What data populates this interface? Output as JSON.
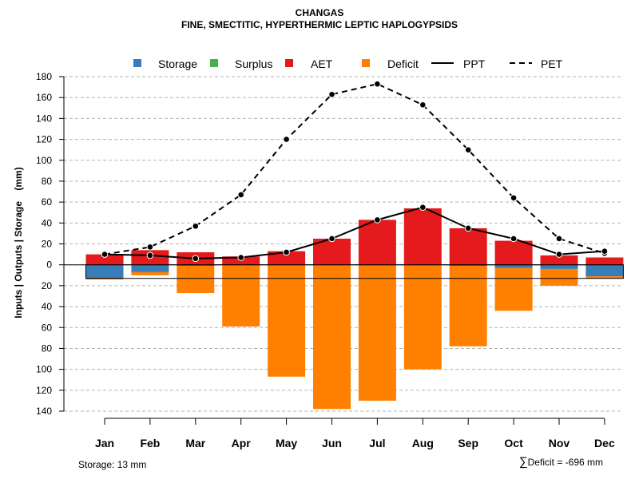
{
  "chart_data": {
    "type": "bar",
    "title": "CHANGAS",
    "subtitle": "FINE, SMECTITIC, HYPERTHERMIC LEPTIC HAPLOGYPSIDS",
    "ylabel": "Inputs | Outputs | Storage    (mm)",
    "ylim": [
      -140,
      180
    ],
    "y_ticks": [
      180,
      160,
      140,
      120,
      100,
      80,
      60,
      40,
      20,
      0,
      -20,
      -40,
      -60,
      -80,
      -100,
      -120,
      -140
    ],
    "y_tick_labels": [
      "180",
      "160",
      "140",
      "120",
      "100",
      "80",
      "60",
      "40",
      "20",
      "0",
      "20",
      "40",
      "60",
      "80",
      "100",
      "120",
      "140"
    ],
    "grid": true,
    "legend_position": "top",
    "categories": [
      "Jan",
      "Feb",
      "Mar",
      "Apr",
      "May",
      "Jun",
      "Jul",
      "Aug",
      "Sep",
      "Oct",
      "Nov",
      "Dec"
    ],
    "series": [
      {
        "name": "Storage",
        "kind": "bar-below",
        "color": "#377EB8",
        "values": [
          13,
          7,
          1,
          0,
          0,
          0,
          0,
          0,
          1,
          3,
          4,
          11
        ]
      },
      {
        "name": "Surplus",
        "kind": "bar-above",
        "color": "#4DAF4A",
        "values": [
          0,
          0,
          0,
          0,
          0,
          0,
          0,
          0,
          0,
          0,
          0,
          0
        ]
      },
      {
        "name": "AET",
        "kind": "bar-above",
        "color": "#E41A1C",
        "values": [
          10,
          14,
          12,
          8,
          13,
          25,
          43,
          54,
          35,
          23,
          9,
          7
        ]
      },
      {
        "name": "Deficit",
        "kind": "bar-below",
        "color": "#FF7F00",
        "values": [
          1,
          3,
          26,
          59,
          107,
          138,
          130,
          100,
          77,
          41,
          16,
          2
        ]
      },
      {
        "name": "PPT",
        "kind": "line",
        "color": "#000000",
        "values": [
          10,
          9,
          6,
          7,
          12,
          25,
          43,
          55,
          35,
          25,
          10,
          13
        ]
      },
      {
        "name": "PET",
        "kind": "dashed-line",
        "color": "#000000",
        "values": [
          10,
          17,
          37,
          67,
          120,
          163,
          173,
          153,
          110,
          64,
          25,
          11
        ]
      }
    ],
    "storage_line": 13
  },
  "footer": {
    "storage": "Storage: 13 mm",
    "deficit_symbol": "∑",
    "deficit": "Deficit = -696 mm"
  }
}
